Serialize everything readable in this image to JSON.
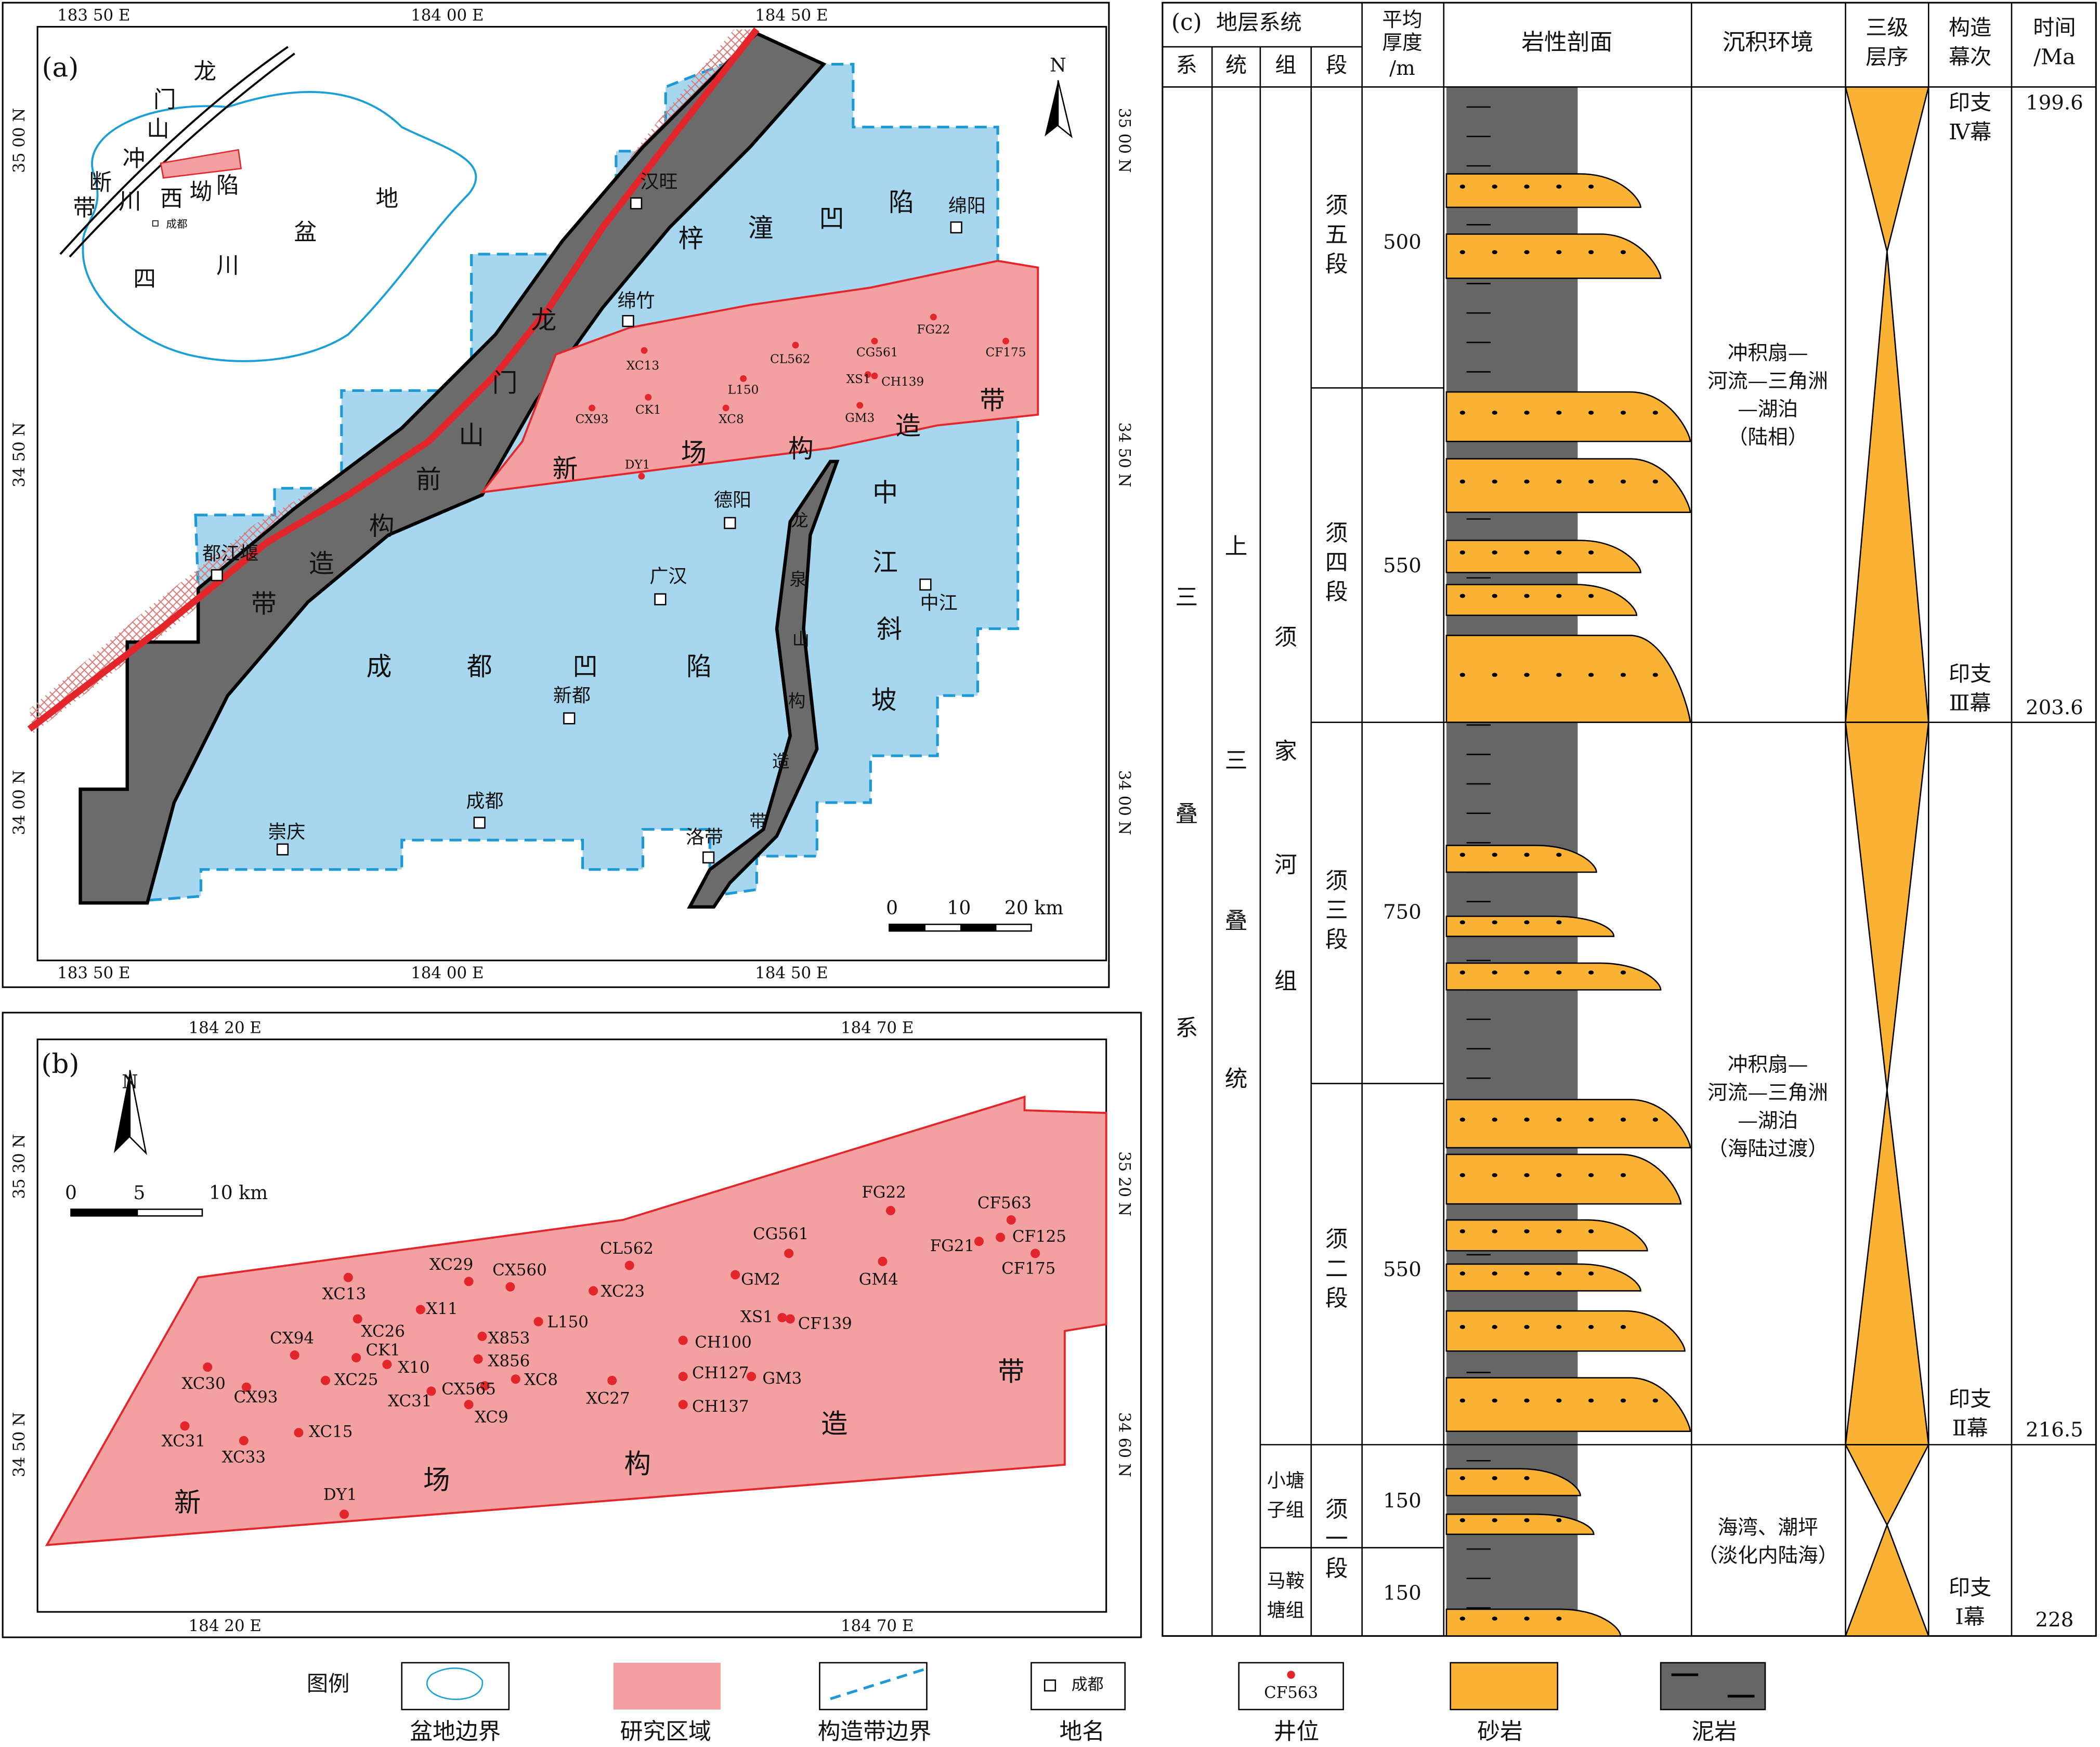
{
  "panel_a": {
    "label": "(a)",
    "north": "N",
    "coords": {
      "top": [
        "183 50 E",
        "184 00 E",
        "184 50 E"
      ],
      "bottom": [
        "183 50 E",
        "184 00 E",
        "184 50 E"
      ],
      "left": [
        "35 00 N",
        "34 50 N",
        "34 00 N"
      ],
      "right": [
        "35 00 N",
        "34 50 N",
        "34 00 N"
      ]
    },
    "inset_labels": [
      "龙",
      "门",
      "山",
      "冲",
      "断",
      "带",
      "川",
      "西",
      "坳",
      "陷",
      "盆",
      "地",
      "四",
      "川",
      "成都"
    ],
    "zones": [
      [
        "梓",
        "潼",
        "凹",
        "陷"
      ],
      [
        "龙",
        "门",
        "山",
        "前",
        "构",
        "造",
        "带"
      ],
      [
        "新",
        "场",
        "构",
        "造",
        "带"
      ],
      [
        "中",
        "江",
        "斜",
        "坡"
      ],
      [
        "龙",
        "泉",
        "山",
        "构",
        "造",
        "带"
      ],
      [
        "成",
        "都",
        "凹",
        "陷"
      ]
    ],
    "places": [
      "汉旺",
      "绵阳",
      "绵竹",
      "德阳",
      "都江堰",
      "广汉",
      "中江",
      "新都",
      "成都",
      "崇庆",
      "洛带"
    ],
    "wells": [
      "XC13",
      "CL562",
      "CG561",
      "FG22",
      "CF175",
      "L150",
      "XS1",
      "CH139",
      "CK1",
      "CX93",
      "XC8",
      "GM3",
      "DY1"
    ],
    "scale": [
      "0",
      "10",
      "20 km"
    ]
  },
  "panel_b": {
    "label": "(b)",
    "north": "N",
    "coords": {
      "top": [
        "184 20 E",
        "184 70 E"
      ],
      "bottom": [
        "184 20 E",
        "184 70 E"
      ],
      "left": [
        "35 30 N",
        "34 50 N"
      ],
      "right": [
        "35 20 N",
        "34 60 N"
      ]
    },
    "zones": [
      "新",
      "场",
      "构",
      "造",
      "带"
    ],
    "wells": [
      "FG22",
      "CF563",
      "CF125",
      "FG21",
      "CF175",
      "CG561",
      "GM2",
      "GM4",
      "CL562",
      "XC29",
      "CX560",
      "XC23",
      "XC13",
      "X11",
      "XC26",
      "CK1",
      "X853",
      "L150",
      "XS1",
      "CF139",
      "CX94",
      "CH100",
      "X856",
      "X10",
      "XC8",
      "CX565",
      "XC30",
      "XC25",
      "CH127",
      "GM3",
      "XC27",
      "XC31",
      "XC9",
      "CX93",
      "CH137",
      "XC15",
      "XC31",
      "XC33",
      "DY1"
    ],
    "scale": [
      "0",
      "5",
      "10 km"
    ]
  },
  "panel_c": {
    "label": "(c)",
    "strat_header": "地层系统",
    "cols": [
      "系",
      "统",
      "组",
      "段"
    ],
    "thickness_header": [
      "平均",
      "厚度",
      "/m"
    ],
    "lithology_header": "岩性剖面",
    "environment_header": "沉积环境",
    "sequence_header": [
      "三级",
      "层序"
    ],
    "episode_header": [
      "构造",
      "幕次"
    ],
    "time_header": [
      "时间",
      "/Ma"
    ],
    "system": [
      "三",
      "叠",
      "系"
    ],
    "series": [
      "上",
      "三",
      "叠",
      "统"
    ],
    "formation": [
      "须",
      "家",
      "河",
      "组"
    ],
    "small_formations": [
      [
        "小塘",
        "子组"
      ],
      [
        "马鞍",
        "塘组"
      ]
    ],
    "members": [
      [
        "须",
        "五",
        "段"
      ],
      [
        "须",
        "四",
        "段"
      ],
      [
        "须",
        "三",
        "段"
      ],
      [
        "须",
        "二",
        "段"
      ],
      [
        "须",
        "一",
        "段"
      ]
    ],
    "thickness": [
      500,
      550,
      750,
      550,
      150,
      150
    ],
    "environments": [
      [
        "冲积扇—",
        "河流—三角洲",
        "—湖泊",
        "（陆相）"
      ],
      [
        "冲积扇—",
        "河流—三角洲",
        "—湖泊",
        "（海陆过渡）"
      ],
      [
        "海湾、潮坪",
        "（淡化内陆海）"
      ]
    ],
    "episodes": [
      [
        "印支",
        "Ⅳ幕"
      ],
      [
        "印支",
        "Ⅲ幕"
      ],
      [
        "印支",
        "Ⅱ幕"
      ],
      [
        "印支",
        "Ⅰ幕"
      ]
    ],
    "times": [
      199.6,
      203.6,
      216.5,
      228
    ]
  },
  "legend": {
    "title": "图例",
    "items": [
      "盆地边界",
      "研究区域",
      "构造带边界",
      "地名",
      "井位",
      "砂岩",
      "泥岩"
    ],
    "place_sample": "成都",
    "well_sample": "CF563"
  }
}
